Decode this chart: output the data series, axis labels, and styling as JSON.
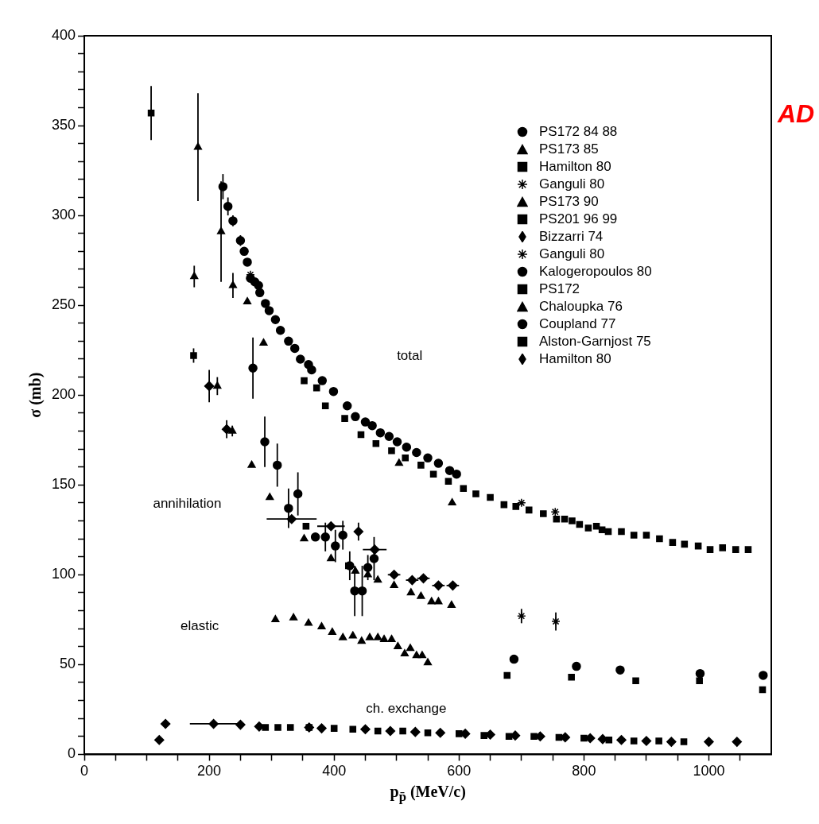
{
  "chart_data": {
    "type": "scatter",
    "xlabel": "p$_{p̄}$ (MeV/c)",
    "ylabel": "σ (mb)",
    "xlim": [
      0,
      1100
    ],
    "ylim": [
      0,
      400
    ],
    "xticks": [
      0,
      {
        "value": 50,
        "label": null
      },
      200,
      {
        "value": 100,
        "label": null
      },
      {
        "value": 150,
        "label": null
      },
      {
        "value": 250,
        "label": null
      },
      {
        "value": 300,
        "label": null
      },
      {
        "value": 350,
        "label": null
      },
      400,
      {
        "value": 450,
        "label": null
      },
      {
        "value": 500,
        "label": null
      },
      {
        "value": 550,
        "label": null
      },
      600,
      {
        "value": 650,
        "label": null
      },
      {
        "value": 700,
        "label": null
      },
      {
        "value": 750,
        "label": null
      },
      800,
      {
        "value": 850,
        "label": null
      },
      {
        "value": 900,
        "label": null
      },
      {
        "value": 950,
        "label": null
      },
      1000,
      {
        "value": 1050,
        "label": null
      }
    ],
    "yticks": [
      0,
      50,
      100,
      150,
      200,
      250,
      300,
      350,
      400,
      {
        "value": 10,
        "label": null
      },
      {
        "value": 20,
        "label": null
      },
      {
        "value": 30,
        "label": null
      },
      {
        "value": 40,
        "label": null
      },
      {
        "value": 60,
        "label": null
      },
      {
        "value": 70,
        "label": null
      },
      {
        "value": 80,
        "label": null
      },
      {
        "value": 90,
        "label": null
      },
      {
        "value": 110,
        "label": null
      },
      {
        "value": 120,
        "label": null
      },
      {
        "value": 130,
        "label": null
      },
      {
        "value": 140,
        "label": null
      },
      {
        "value": 160,
        "label": null
      },
      {
        "value": 170,
        "label": null
      },
      {
        "value": 180,
        "label": null
      },
      {
        "value": 190,
        "label": null
      },
      {
        "value": 210,
        "label": null
      },
      {
        "value": 220,
        "label": null
      },
      {
        "value": 230,
        "label": null
      },
      {
        "value": 240,
        "label": null
      },
      {
        "value": 260,
        "label": null
      },
      {
        "value": 270,
        "label": null
      },
      {
        "value": 280,
        "label": null
      },
      {
        "value": 290,
        "label": null
      },
      {
        "value": 310,
        "label": null
      },
      {
        "value": 320,
        "label": null
      },
      {
        "value": 330,
        "label": null
      },
      {
        "value": 340,
        "label": null
      },
      {
        "value": 360,
        "label": null
      },
      {
        "value": 370,
        "label": null
      },
      {
        "value": 380,
        "label": null
      },
      {
        "value": 390,
        "label": null
      }
    ],
    "grid": false,
    "legend": "top right",
    "annotations": [
      "total",
      "annihilation",
      "elastic",
      "ch. exchange",
      "AD"
    ],
    "series": [
      {
        "name": "PS172 84 88",
        "color": "#000000",
        "marker": "circle",
        "x": [
          222,
          230,
          238,
          250,
          256,
          261,
          266,
          273,
          279,
          281,
          290,
          296,
          306,
          314,
          327,
          337,
          346,
          359,
          364,
          381,
          399,
          421,
          434,
          450,
          461,
          474,
          488,
          501,
          516,
          532,
          550,
          567,
          585,
          596
        ],
        "values": [
          316,
          305,
          297,
          286,
          280,
          274,
          265,
          263,
          261,
          257,
          251,
          247,
          242,
          236,
          230,
          226,
          220,
          217,
          214,
          208,
          202,
          194,
          188,
          185,
          183,
          179,
          177,
          174,
          171,
          168,
          165,
          162,
          158,
          156
        ],
        "errors": [
          7,
          5,
          3,
          3,
          null,
          null,
          null,
          null,
          null,
          null,
          null,
          null,
          null,
          null,
          null,
          null,
          null,
          null,
          null,
          null,
          null,
          null,
          null,
          null,
          null,
          null,
          null,
          null,
          null,
          null,
          null,
          null,
          null,
          null
        ]
      },
      {
        "name": "PS173 85",
        "color": "#000000",
        "marker": "triangle",
        "x": [
          182,
          219,
          238,
          261,
          287,
          504,
          589
        ],
        "values": [
          338,
          291,
          261,
          252,
          229,
          162,
          140
        ],
        "errors": [
          30,
          28,
          7,
          null,
          null,
          null,
          null
        ]
      },
      {
        "name": "Hamilton 80",
        "color": "#000000",
        "marker": "square",
        "x": [
          352,
          372,
          386,
          417,
          443,
          467,
          492,
          514,
          539,
          559,
          583,
          607,
          627,
          650,
          672,
          691,
          712,
          735,
          756,
          769,
          781,
          793,
          807,
          820,
          829,
          839,
          860,
          880,
          900,
          921,
          942,
          961,
          983,
          1002,
          1022,
          1043,
          1063
        ],
        "values": [
          208,
          204,
          194,
          187,
          178,
          173,
          169,
          165,
          161,
          156,
          152,
          148,
          145,
          143,
          139,
          138,
          136,
          134,
          131,
          131,
          130,
          128,
          126,
          127,
          125,
          124,
          124,
          122,
          122,
          120,
          118,
          117,
          116,
          114,
          115,
          114,
          114
        ]
      },
      {
        "name": "Ganguli 80",
        "color": "#000000",
        "marker": "cross",
        "x": [
          266,
          700,
          754
        ],
        "values": [
          267,
          140,
          135
        ]
      },
      {
        "name": "PS173 90",
        "color": "#000000",
        "marker": "triangle",
        "x": [
          176,
          213,
          237,
          268,
          297,
          352,
          395,
          434,
          454,
          470,
          496,
          523,
          539,
          556,
          567,
          588
        ],
        "values": [
          266,
          205,
          180,
          161,
          143,
          120,
          109,
          102,
          100,
          97,
          94,
          90,
          88,
          85,
          85,
          83
        ],
        "errors": [
          6,
          5,
          3,
          null,
          null,
          null,
          null,
          null,
          null,
          null,
          null,
          null,
          null,
          null,
          null,
          null
        ]
      },
      {
        "name": "PS201 96 99",
        "color": "#000000",
        "marker": "square",
        "x": [
          107,
          175,
          355,
          423
        ],
        "values": [
          357,
          222,
          127,
          105
        ],
        "errors": [
          15,
          4,
          null,
          null
        ]
      },
      {
        "name": "Bizzarri 74",
        "color": "#000000",
        "marker": "diamond",
        "x": [
          200,
          228,
          332,
          395,
          439,
          465,
          496,
          525,
          543,
          567,
          590
        ],
        "values": [
          205,
          181,
          131,
          127,
          124,
          114,
          100,
          97,
          98,
          94,
          94
        ],
        "xerrors": [
          null,
          null,
          40,
          22,
          null,
          19,
          10,
          10,
          10,
          10,
          10
        ],
        "errors": [
          9,
          5,
          null,
          null,
          5,
          null,
          null,
          null,
          null,
          null,
          null
        ]
      },
      {
        "name": "Ganguli 80",
        "color": "#000000",
        "marker": "cross",
        "x": [
          700,
          755
        ],
        "values": [
          77,
          74
        ],
        "errors": [
          4,
          5
        ]
      },
      {
        "name": "Kalogeropoulos 80",
        "color": "#000000",
        "marker": "circle",
        "x": [
          270,
          289,
          309,
          327,
          342,
          370,
          386,
          402,
          414,
          425,
          433,
          445,
          454,
          464
        ],
        "values": [
          215,
          174,
          161,
          137,
          145,
          121,
          121,
          116,
          122,
          105,
          91,
          91,
          104,
          109
        ],
        "errors": [
          17,
          14,
          12,
          11,
          12,
          null,
          8,
          9,
          8,
          8,
          14,
          14,
          7,
          12
        ]
      },
      {
        "name": "PS172",
        "color": "#000000",
        "marker": "square",
        "x": [
          677,
          780,
          883,
          985,
          1086
        ],
        "values": [
          44,
          43,
          41,
          41,
          36
        ]
      },
      {
        "name": "Chaloupka 76",
        "color": "#000000",
        "marker": "triangle",
        "x": [
          306,
          335,
          359,
          380,
          397,
          414,
          430,
          444,
          457,
          470,
          480,
          492,
          502,
          513,
          522,
          532,
          541,
          550
        ],
        "values": [
          75,
          76,
          73,
          71,
          68,
          65,
          66,
          63,
          65,
          65,
          64,
          64,
          60,
          56,
          59,
          55,
          55,
          51
        ]
      },
      {
        "name": "Coupland 77",
        "color": "#000000",
        "marker": "circle",
        "x": [
          688,
          788,
          858,
          986,
          1087
        ],
        "values": [
          53,
          49,
          47,
          45,
          44
        ]
      },
      {
        "name": "Alston-Garnjost 75",
        "color": "#000000",
        "marker": "square",
        "x": [
          290,
          310,
          330,
          360,
          400,
          430,
          470,
          510,
          550,
          600,
          640,
          680,
          720,
          760,
          800,
          840,
          880,
          920,
          960
        ],
        "values": [
          15,
          15,
          15,
          15,
          14.5,
          14,
          13,
          13,
          12,
          11.5,
          10.5,
          10,
          10,
          9.5,
          9,
          8,
          7.5,
          7.5,
          7
        ]
      },
      {
        "name": "Hamilton 80",
        "color": "#000000",
        "marker": "diamond",
        "x": [
          120,
          130,
          207,
          250,
          280,
          360,
          380,
          450,
          490,
          530,
          570,
          610,
          650,
          690,
          730,
          770,
          810,
          830,
          860,
          900,
          940,
          1000,
          1045
        ],
        "values": [
          8,
          17,
          17,
          16.5,
          15.5,
          15,
          14.5,
          14,
          13,
          12.5,
          12,
          11.5,
          11,
          10.5,
          10,
          9.5,
          9,
          8.5,
          8,
          7.5,
          7,
          7,
          7
        ],
        "xerrors": [
          null,
          null,
          38,
          null,
          null,
          null,
          null,
          null,
          null,
          null,
          null,
          null,
          null,
          null,
          null,
          null,
          null,
          null,
          null,
          null,
          null,
          null,
          null
        ]
      }
    ]
  }
}
